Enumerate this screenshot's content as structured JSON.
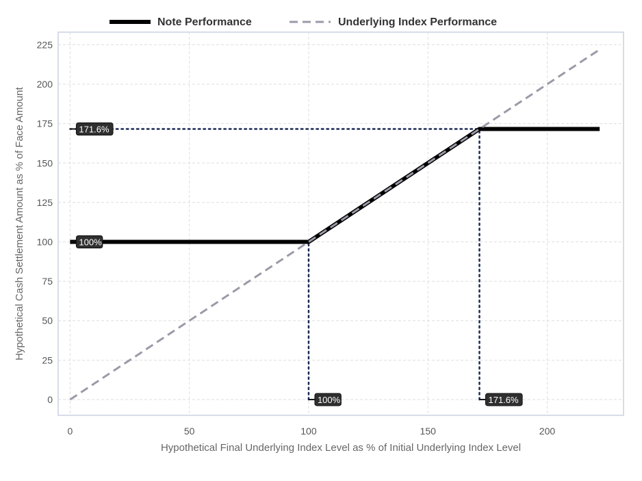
{
  "chart_data": {
    "type": "line",
    "title": "",
    "xlabel": "Hypothetical Final Underlying Index Level as % of Initial Underlying Index Level",
    "ylabel": "Hypothetical Cash Settlement Amount as % of Face Amount",
    "xlim": [
      -5,
      232
    ],
    "ylim": [
      -10,
      233
    ],
    "xticks": [
      0,
      50,
      100,
      150,
      200
    ],
    "yticks": [
      0,
      25,
      50,
      75,
      100,
      125,
      150,
      175,
      200,
      225
    ],
    "grid": true,
    "legend_position": "top",
    "series": [
      {
        "name": "Note Performance",
        "color": "#000000",
        "style": "solid",
        "points": [
          [
            0,
            100
          ],
          [
            100,
            100
          ],
          [
            171.6,
            171.6
          ],
          [
            222,
            171.6
          ]
        ]
      },
      {
        "name": "Underlying Index Performance",
        "color": "#9a9aa8",
        "style": "dashed",
        "points": [
          [
            0,
            0
          ],
          [
            222,
            222
          ]
        ]
      }
    ],
    "reference_lines": [
      {
        "points": [
          [
            0,
            171.6
          ],
          [
            171.6,
            171.6
          ]
        ],
        "color": "#1a2a55"
      },
      {
        "points": [
          [
            100,
            0
          ],
          [
            100,
            100
          ]
        ],
        "color": "#1a2a55"
      },
      {
        "points": [
          [
            171.6,
            0
          ],
          [
            171.6,
            171.6
          ]
        ],
        "color": "#1a2a55"
      }
    ],
    "annotations": [
      {
        "text": "171.6%",
        "x": 0,
        "y": 171.6,
        "side": "y"
      },
      {
        "text": "100%",
        "x": 0,
        "y": 100,
        "side": "y"
      },
      {
        "text": "100%",
        "x": 100,
        "y": 0,
        "side": "x"
      },
      {
        "text": "171.6%",
        "x": 171.6,
        "y": 0,
        "side": "x"
      }
    ]
  }
}
